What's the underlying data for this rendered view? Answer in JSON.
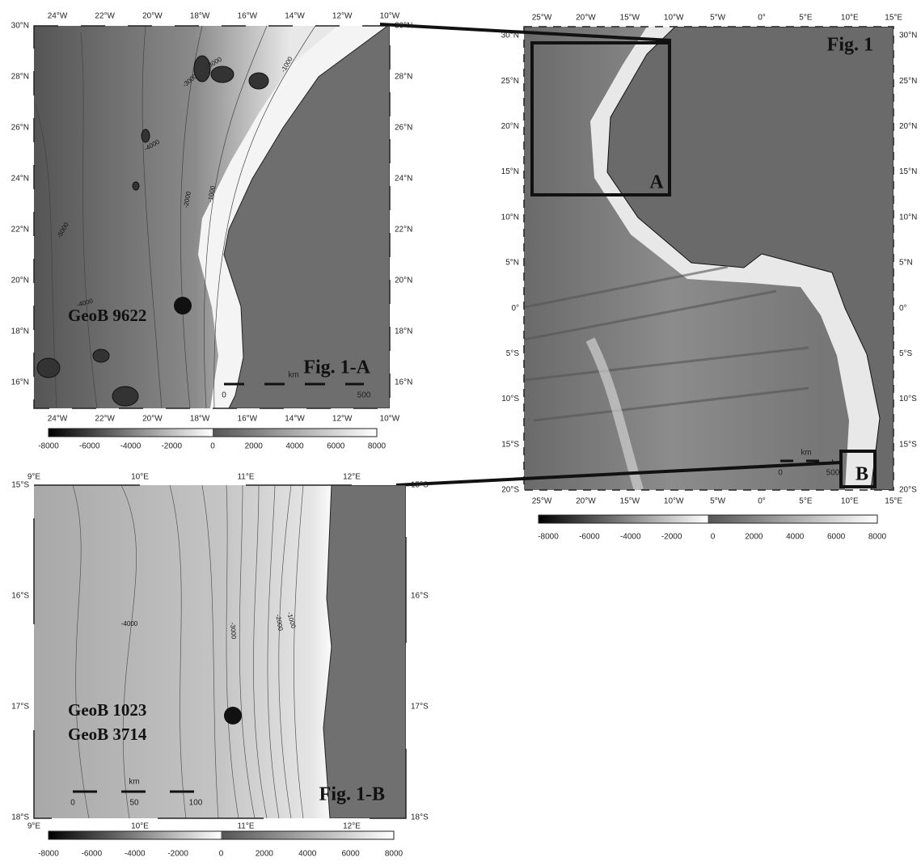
{
  "figure_1": {
    "title": "Fig. 1",
    "x_labels": [
      "25°W",
      "20°W",
      "15°W",
      "10°W",
      "5°W",
      "0°",
      "5°E",
      "10°E",
      "15°E"
    ],
    "y_labels": [
      "30°N",
      "25°N",
      "20°N",
      "15°N",
      "10°N",
      "5°N",
      "0°",
      "5°S",
      "10°S",
      "15°S",
      "20°S"
    ],
    "box_labels": [
      "A",
      "B"
    ],
    "scale": {
      "unit": "km",
      "labels": [
        "0",
        "500"
      ]
    },
    "colorbar_labels": [
      "-8000",
      "-6000",
      "-4000",
      "-2000",
      "0",
      "2000",
      "4000",
      "6000",
      "8000"
    ]
  },
  "figure_1a": {
    "title": "Fig. 1-A",
    "x_labels": [
      "24°W",
      "22°W",
      "20°W",
      "18°W",
      "16°W",
      "14°W",
      "12°W",
      "10°W"
    ],
    "y_labels": [
      "30°N",
      "28°N",
      "26°N",
      "24°N",
      "22°N",
      "20°N",
      "18°N",
      "16°N"
    ],
    "site": "GeoB 9622",
    "contour_labels": [
      "-3000",
      "-1000",
      "-4000",
      "-3000",
      "-5000",
      "-4000",
      "-2000",
      "-1000"
    ],
    "scale": {
      "unit": "km",
      "labels": [
        "0",
        "500"
      ]
    },
    "colorbar_labels": [
      "-8000",
      "-6000",
      "-4000",
      "-2000",
      "0",
      "2000",
      "4000",
      "6000",
      "8000"
    ]
  },
  "figure_1b": {
    "title": "Fig. 1-B",
    "x_labels": [
      "9°E",
      "10°E",
      "11°E",
      "12°E"
    ],
    "y_labels": [
      "15°S",
      "16°S",
      "17°S",
      "18°S"
    ],
    "sites": [
      "GeoB 1023",
      "GeoB 3714"
    ],
    "contour_labels": [
      "-4000",
      "-3000",
      "-2000",
      "-1000"
    ],
    "scale": {
      "unit": "km",
      "labels": [
        "0",
        "50",
        "100"
      ]
    },
    "colorbar_labels": [
      "-8000",
      "-6000",
      "-4000",
      "-2000",
      "0",
      "2000",
      "4000",
      "6000",
      "8000"
    ]
  }
}
